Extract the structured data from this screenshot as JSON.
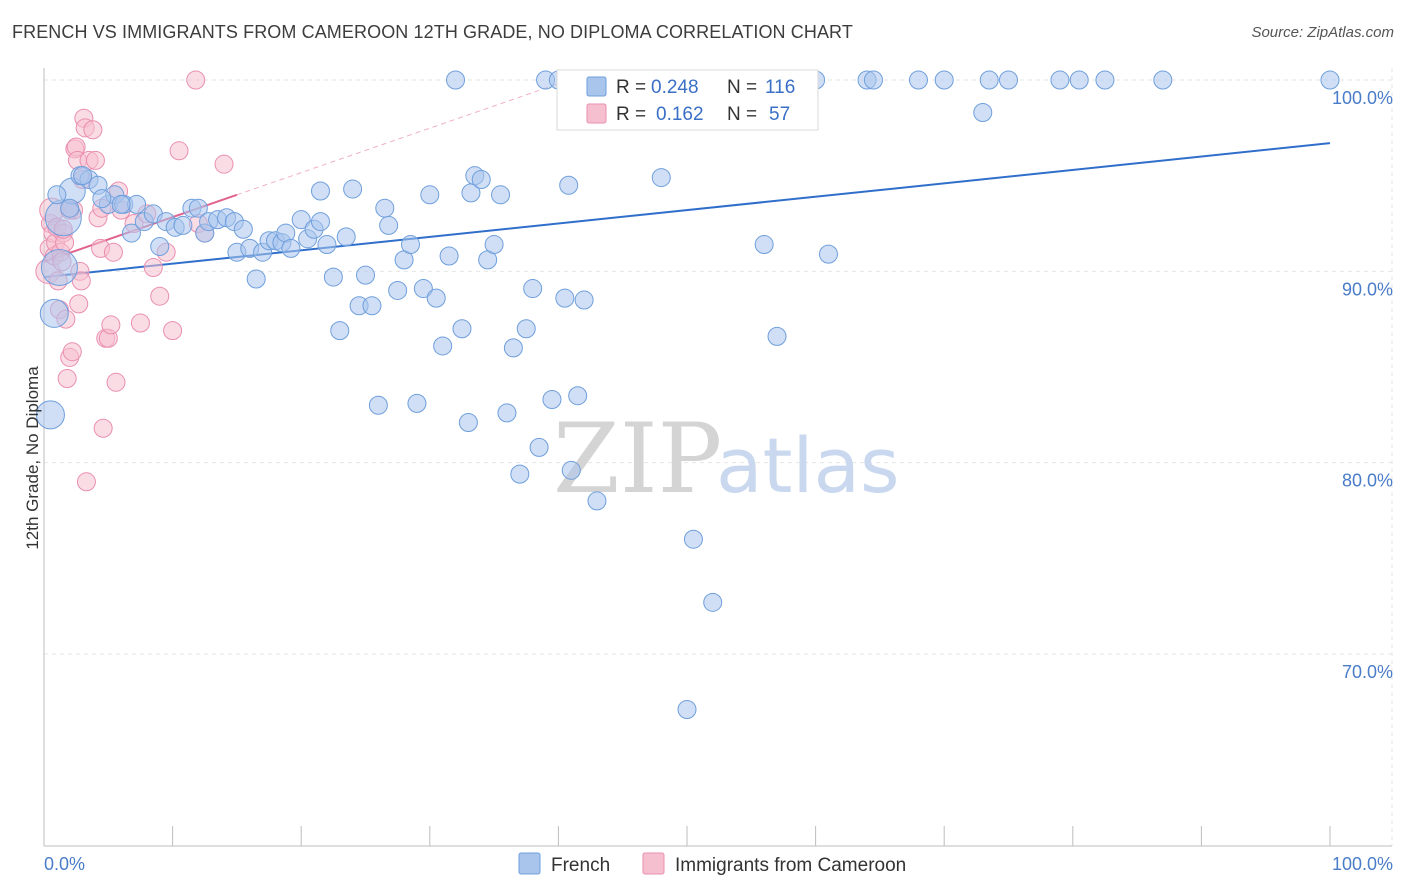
{
  "title": "FRENCH VS IMMIGRANTS FROM CAMEROON 12TH GRADE, NO DIPLOMA CORRELATION CHART",
  "source": "Source: ZipAtlas.com",
  "colors": {
    "french_fill": "#a9c5ec",
    "french_stroke": "#6f9fdc",
    "french_line": "#2f6fcb",
    "cameroon_fill": "#f6bfd0",
    "cameroon_stroke": "#ea8fb0",
    "cameroon_line": "#e0648f",
    "axis_text": "#4a7cc9",
    "grid": "#e6e6e6"
  },
  "watermark": {
    "zip": "ZIP",
    "atlas": "atlas"
  },
  "legend": {
    "r_label": "R =",
    "n_label": "N =",
    "rows": [
      {
        "series": "French",
        "r": "0.248",
        "n": "116"
      },
      {
        "series": "Immigrants from Cameroon",
        "r": "0.162",
        "n": "57"
      }
    ]
  },
  "chart_data": {
    "type": "scatter",
    "title": "FRENCH VS IMMIGRANTS FROM CAMEROON 12TH GRADE, NO DIPLOMA CORRELATION CHART",
    "xlabel": "",
    "ylabel": "12th Grade, No Diploma",
    "xlim": [
      0,
      100
    ],
    "ylim": [
      61,
      101.5
    ],
    "x_tick_labels": [
      "0.0%",
      "100.0%"
    ],
    "y_ticks": [
      70,
      80,
      90,
      100
    ],
    "y_tick_labels": [
      "70.0%",
      "80.0%",
      "90.0%",
      "100.0%"
    ],
    "grid": true,
    "series": [
      {
        "name": "French",
        "trend": {
          "x": [
            0,
            100
          ],
          "y": [
            89.7,
            96.7
          ]
        },
        "points": [
          [
            0.5,
            82.5
          ],
          [
            0.8,
            87.8
          ],
          [
            1.2,
            90.2
          ],
          [
            1.5,
            92.8
          ],
          [
            2.2,
            94.2
          ],
          [
            2.8,
            95.0
          ],
          [
            3.5,
            94.8
          ],
          [
            4.2,
            94.5
          ],
          [
            5.0,
            93.5
          ],
          [
            5.5,
            94.0
          ],
          [
            6.2,
            93.5
          ],
          [
            6.8,
            92.0
          ],
          [
            7.2,
            93.5
          ],
          [
            7.8,
            92.6
          ],
          [
            8.5,
            93.0
          ],
          [
            9.0,
            91.3
          ],
          [
            9.5,
            92.6
          ],
          [
            10.2,
            92.3
          ],
          [
            10.8,
            92.4
          ],
          [
            11.5,
            93.3
          ],
          [
            12.0,
            93.3
          ],
          [
            12.5,
            92.0
          ],
          [
            12.8,
            92.6
          ],
          [
            13.5,
            92.7
          ],
          [
            14.2,
            92.8
          ],
          [
            14.8,
            92.6
          ],
          [
            15.0,
            91.0
          ],
          [
            15.5,
            92.2
          ],
          [
            16.0,
            91.2
          ],
          [
            16.5,
            89.6
          ],
          [
            17.0,
            91.0
          ],
          [
            17.5,
            91.6
          ],
          [
            18.0,
            91.6
          ],
          [
            18.5,
            91.5
          ],
          [
            18.8,
            92.0
          ],
          [
            19.2,
            91.2
          ],
          [
            20.0,
            92.7
          ],
          [
            20.5,
            91.7
          ],
          [
            21.0,
            92.2
          ],
          [
            21.5,
            92.6
          ],
          [
            21.5,
            94.2
          ],
          [
            22.0,
            91.4
          ],
          [
            22.5,
            89.7
          ],
          [
            23.0,
            86.9
          ],
          [
            23.5,
            91.8
          ],
          [
            24.0,
            94.3
          ],
          [
            24.5,
            88.2
          ],
          [
            25.0,
            89.8
          ],
          [
            25.5,
            88.2
          ],
          [
            26.0,
            83.0
          ],
          [
            26.5,
            93.3
          ],
          [
            26.8,
            92.4
          ],
          [
            27.5,
            89.0
          ],
          [
            28.0,
            90.6
          ],
          [
            28.5,
            91.4
          ],
          [
            29.0,
            83.1
          ],
          [
            29.5,
            89.1
          ],
          [
            30.0,
            94.0
          ],
          [
            30.5,
            88.6
          ],
          [
            31.0,
            86.1
          ],
          [
            31.5,
            90.8
          ],
          [
            32.0,
            100.0
          ],
          [
            32.5,
            87.0
          ],
          [
            33.0,
            82.1
          ],
          [
            33.2,
            94.1
          ],
          [
            33.5,
            95.0
          ],
          [
            34.0,
            94.8
          ],
          [
            34.5,
            90.6
          ],
          [
            35.0,
            91.4
          ],
          [
            35.5,
            94.0
          ],
          [
            36.0,
            82.6
          ],
          [
            36.5,
            86.0
          ],
          [
            37.0,
            79.4
          ],
          [
            37.5,
            87.0
          ],
          [
            38.0,
            89.1
          ],
          [
            38.5,
            80.8
          ],
          [
            39.0,
            100.0
          ],
          [
            39.5,
            83.3
          ],
          [
            40.0,
            100.0
          ],
          [
            40.5,
            88.6
          ],
          [
            40.8,
            94.5
          ],
          [
            41.0,
            79.6
          ],
          [
            41.5,
            83.5
          ],
          [
            42.0,
            88.5
          ],
          [
            43.0,
            78.0
          ],
          [
            44.0,
            100.0
          ],
          [
            46.0,
            100.0
          ],
          [
            48.0,
            94.9
          ],
          [
            50.0,
            67.1
          ],
          [
            50.5,
            76.0
          ],
          [
            51.0,
            100.0
          ],
          [
            52.0,
            72.7
          ],
          [
            53.0,
            100.0
          ],
          [
            55.0,
            100.0
          ],
          [
            56.0,
            91.4
          ],
          [
            57.0,
            86.6
          ],
          [
            58.0,
            100.0
          ],
          [
            60.0,
            100.0
          ],
          [
            61.0,
            90.9
          ],
          [
            64.0,
            100.0
          ],
          [
            64.5,
            100.0
          ],
          [
            68.0,
            100.0
          ],
          [
            70.0,
            100.0
          ],
          [
            73.0,
            98.3
          ],
          [
            73.5,
            100.0
          ],
          [
            75.0,
            100.0
          ],
          [
            79.0,
            100.0
          ],
          [
            80.5,
            100.0
          ],
          [
            82.5,
            100.0
          ],
          [
            87.0,
            100.0
          ],
          [
            100.0,
            100.0
          ],
          [
            3.0,
            95.0
          ],
          [
            1.0,
            94.0
          ],
          [
            2.0,
            93.3
          ],
          [
            4.5,
            93.8
          ],
          [
            6.0,
            93.5
          ]
        ]
      },
      {
        "name": "Immigrants from Cameroon",
        "trend": {
          "x": [
            0,
            15
          ],
          "y": [
            90.5,
            94.0
          ]
        },
        "trend_ext": {
          "x": [
            15,
            43
          ],
          "y": [
            94.0,
            100.5
          ]
        },
        "points": [
          [
            0.3,
            90.0
          ],
          [
            0.4,
            91.2
          ],
          [
            0.5,
            92.5
          ],
          [
            0.6,
            93.2
          ],
          [
            0.7,
            92.0
          ],
          [
            0.8,
            90.8
          ],
          [
            0.9,
            91.5
          ],
          [
            1.0,
            92.3
          ],
          [
            1.1,
            89.5
          ],
          [
            1.2,
            88.0
          ],
          [
            1.3,
            91.0
          ],
          [
            1.4,
            90.5
          ],
          [
            1.5,
            92.0
          ],
          [
            1.6,
            91.5
          ],
          [
            1.7,
            87.5
          ],
          [
            1.8,
            84.4
          ],
          [
            2.0,
            85.5
          ],
          [
            2.2,
            85.8
          ],
          [
            2.3,
            93.2
          ],
          [
            2.4,
            96.4
          ],
          [
            2.5,
            96.5
          ],
          [
            2.6,
            95.8
          ],
          [
            2.7,
            88.3
          ],
          [
            2.8,
            90.0
          ],
          [
            2.9,
            89.5
          ],
          [
            3.0,
            94.8
          ],
          [
            3.1,
            98.0
          ],
          [
            3.2,
            97.5
          ],
          [
            3.3,
            79.0
          ],
          [
            3.5,
            95.8
          ],
          [
            3.8,
            97.4
          ],
          [
            4.0,
            95.8
          ],
          [
            4.2,
            92.8
          ],
          [
            4.4,
            91.2
          ],
          [
            4.5,
            93.3
          ],
          [
            4.6,
            81.8
          ],
          [
            4.8,
            86.5
          ],
          [
            5.0,
            86.5
          ],
          [
            5.2,
            87.2
          ],
          [
            5.4,
            91.0
          ],
          [
            5.6,
            84.2
          ],
          [
            5.8,
            94.2
          ],
          [
            6.0,
            93.2
          ],
          [
            7.0,
            92.5
          ],
          [
            7.5,
            87.3
          ],
          [
            8.0,
            93.0
          ],
          [
            8.5,
            90.2
          ],
          [
            9.0,
            88.7
          ],
          [
            9.5,
            91.0
          ],
          [
            10.0,
            86.9
          ],
          [
            10.5,
            96.3
          ],
          [
            12.0,
            92.5
          ],
          [
            12.5,
            92.0
          ],
          [
            11.8,
            100.0
          ],
          [
            14.0,
            95.6
          ],
          [
            1.5,
            92.2
          ],
          [
            2.0,
            93.2
          ]
        ]
      }
    ]
  }
}
